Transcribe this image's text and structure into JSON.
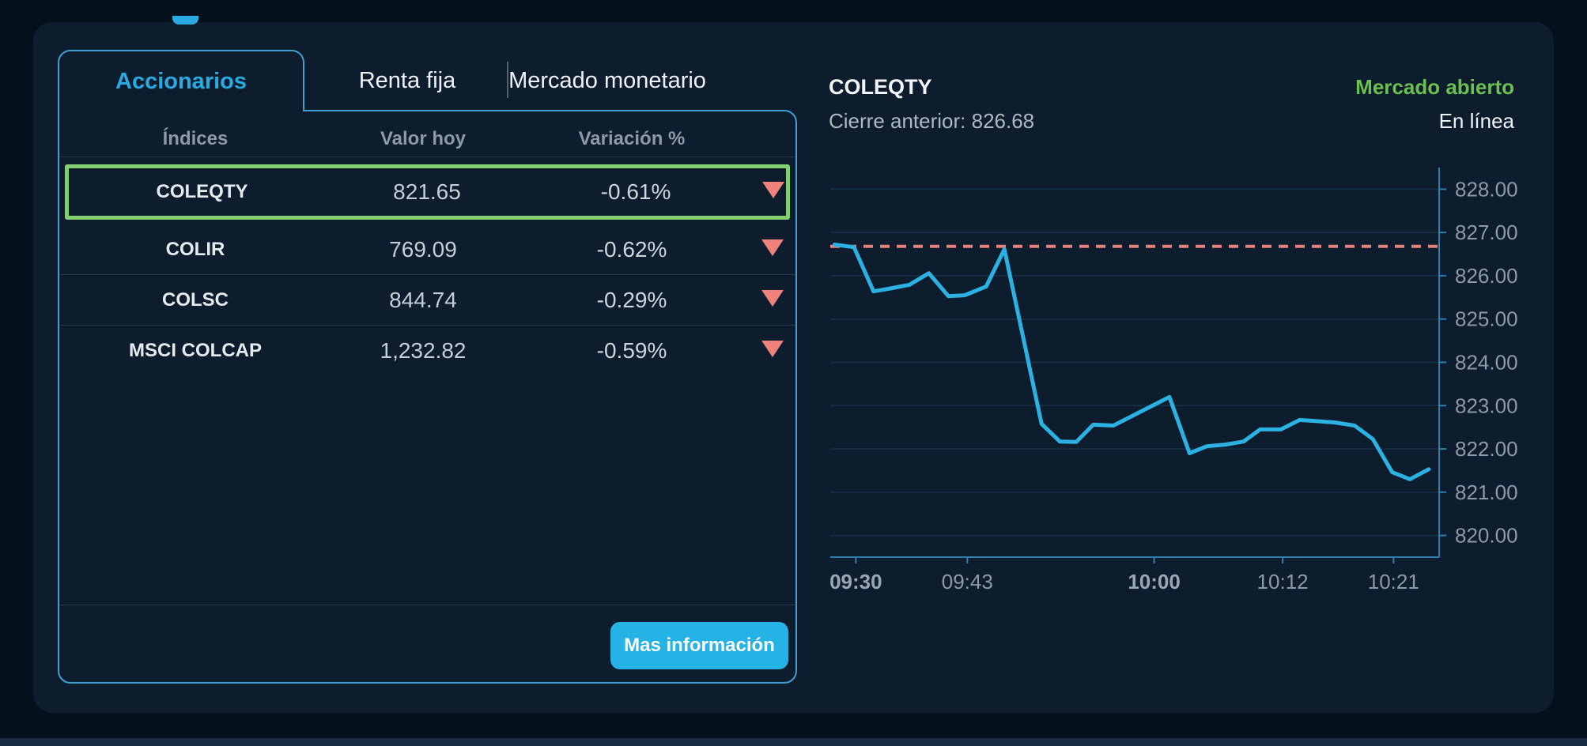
{
  "colors": {
    "accent_blue": "#29abe2",
    "line_blue": "#2cb1e3",
    "ref_salmon": "#e4827d",
    "highlight_green": "#84cf72",
    "status_green": "#6cc04f",
    "button_blue": "#25b3e6",
    "panel_bg": "#0d1d2d",
    "outer_bg": "#04101b"
  },
  "tabs": {
    "accionarios": "Accionarios",
    "renta_fija": "Renta fija",
    "mercado_monetario": "Mercado monetario"
  },
  "table": {
    "headers": {
      "indices": "Índices",
      "valor_hoy": "Valor hoy",
      "variacion": "Variación %"
    },
    "rows": [
      {
        "name": "COLEQTY",
        "value": "821.65",
        "change": "-0.61%",
        "direction": "down",
        "selected": true
      },
      {
        "name": "COLIR",
        "value": "769.09",
        "change": "-0.62%",
        "direction": "down",
        "selected": false
      },
      {
        "name": "COLSC",
        "value": "844.74",
        "change": "-0.29%",
        "direction": "down",
        "selected": false
      },
      {
        "name": "MSCI COLCAP",
        "value": "1,232.82",
        "change": "-0.59%",
        "direction": "down",
        "selected": false
      }
    ]
  },
  "footer": {
    "more_info_label": "Mas información"
  },
  "chart_header": {
    "title": "COLEQTY",
    "prev_close_text": "Cierre anterior: 826.68",
    "market_status": "Mercado abierto",
    "online_status": "En línea"
  },
  "chart_data": {
    "type": "line",
    "series_name": "COLEQTY",
    "ylim": [
      819.5,
      828.5
    ],
    "grid": "horizontal",
    "legend_position": "none",
    "y_ticks": [
      {
        "v": 828,
        "label": "828.00"
      },
      {
        "v": 827,
        "label": "827.00"
      },
      {
        "v": 826,
        "label": "826.00"
      },
      {
        "v": 825,
        "label": "825.00"
      },
      {
        "v": 824,
        "label": "824.00"
      },
      {
        "v": 823,
        "label": "823.00"
      },
      {
        "v": 822,
        "label": "822.00"
      },
      {
        "v": 821,
        "label": "821.00"
      },
      {
        "v": 820,
        "label": "820.00"
      }
    ],
    "x_ticks": [
      {
        "f": 0.042,
        "label": "09:30",
        "bold": true
      },
      {
        "f": 0.225,
        "label": "09:43",
        "bold": false
      },
      {
        "f": 0.532,
        "label": "10:00",
        "bold": true
      },
      {
        "f": 0.743,
        "label": "10:12",
        "bold": false
      },
      {
        "f": 0.925,
        "label": "10:21",
        "bold": false
      }
    ],
    "ref_line": {
      "label": "Cierre anterior",
      "value": 826.68
    },
    "points": [
      {
        "f": 0.007,
        "v": 826.72
      },
      {
        "f": 0.039,
        "v": 826.66
      },
      {
        "f": 0.071,
        "v": 825.64
      },
      {
        "f": 0.096,
        "v": 825.7
      },
      {
        "f": 0.13,
        "v": 825.79
      },
      {
        "f": 0.162,
        "v": 826.06
      },
      {
        "f": 0.194,
        "v": 825.53
      },
      {
        "f": 0.221,
        "v": 825.55
      },
      {
        "f": 0.256,
        "v": 825.75
      },
      {
        "f": 0.286,
        "v": 826.61
      },
      {
        "f": 0.347,
        "v": 822.58
      },
      {
        "f": 0.377,
        "v": 822.17
      },
      {
        "f": 0.404,
        "v": 822.16
      },
      {
        "f": 0.432,
        "v": 822.56
      },
      {
        "f": 0.465,
        "v": 822.54
      },
      {
        "f": 0.557,
        "v": 823.2
      },
      {
        "f": 0.59,
        "v": 821.9
      },
      {
        "f": 0.618,
        "v": 822.06
      },
      {
        "f": 0.649,
        "v": 822.1
      },
      {
        "f": 0.679,
        "v": 822.17
      },
      {
        "f": 0.706,
        "v": 822.45
      },
      {
        "f": 0.74,
        "v": 822.45
      },
      {
        "f": 0.771,
        "v": 822.67
      },
      {
        "f": 0.829,
        "v": 822.61
      },
      {
        "f": 0.861,
        "v": 822.54
      },
      {
        "f": 0.891,
        "v": 822.23
      },
      {
        "f": 0.923,
        "v": 821.46
      },
      {
        "f": 0.952,
        "v": 821.3
      },
      {
        "f": 0.983,
        "v": 821.53
      }
    ]
  }
}
